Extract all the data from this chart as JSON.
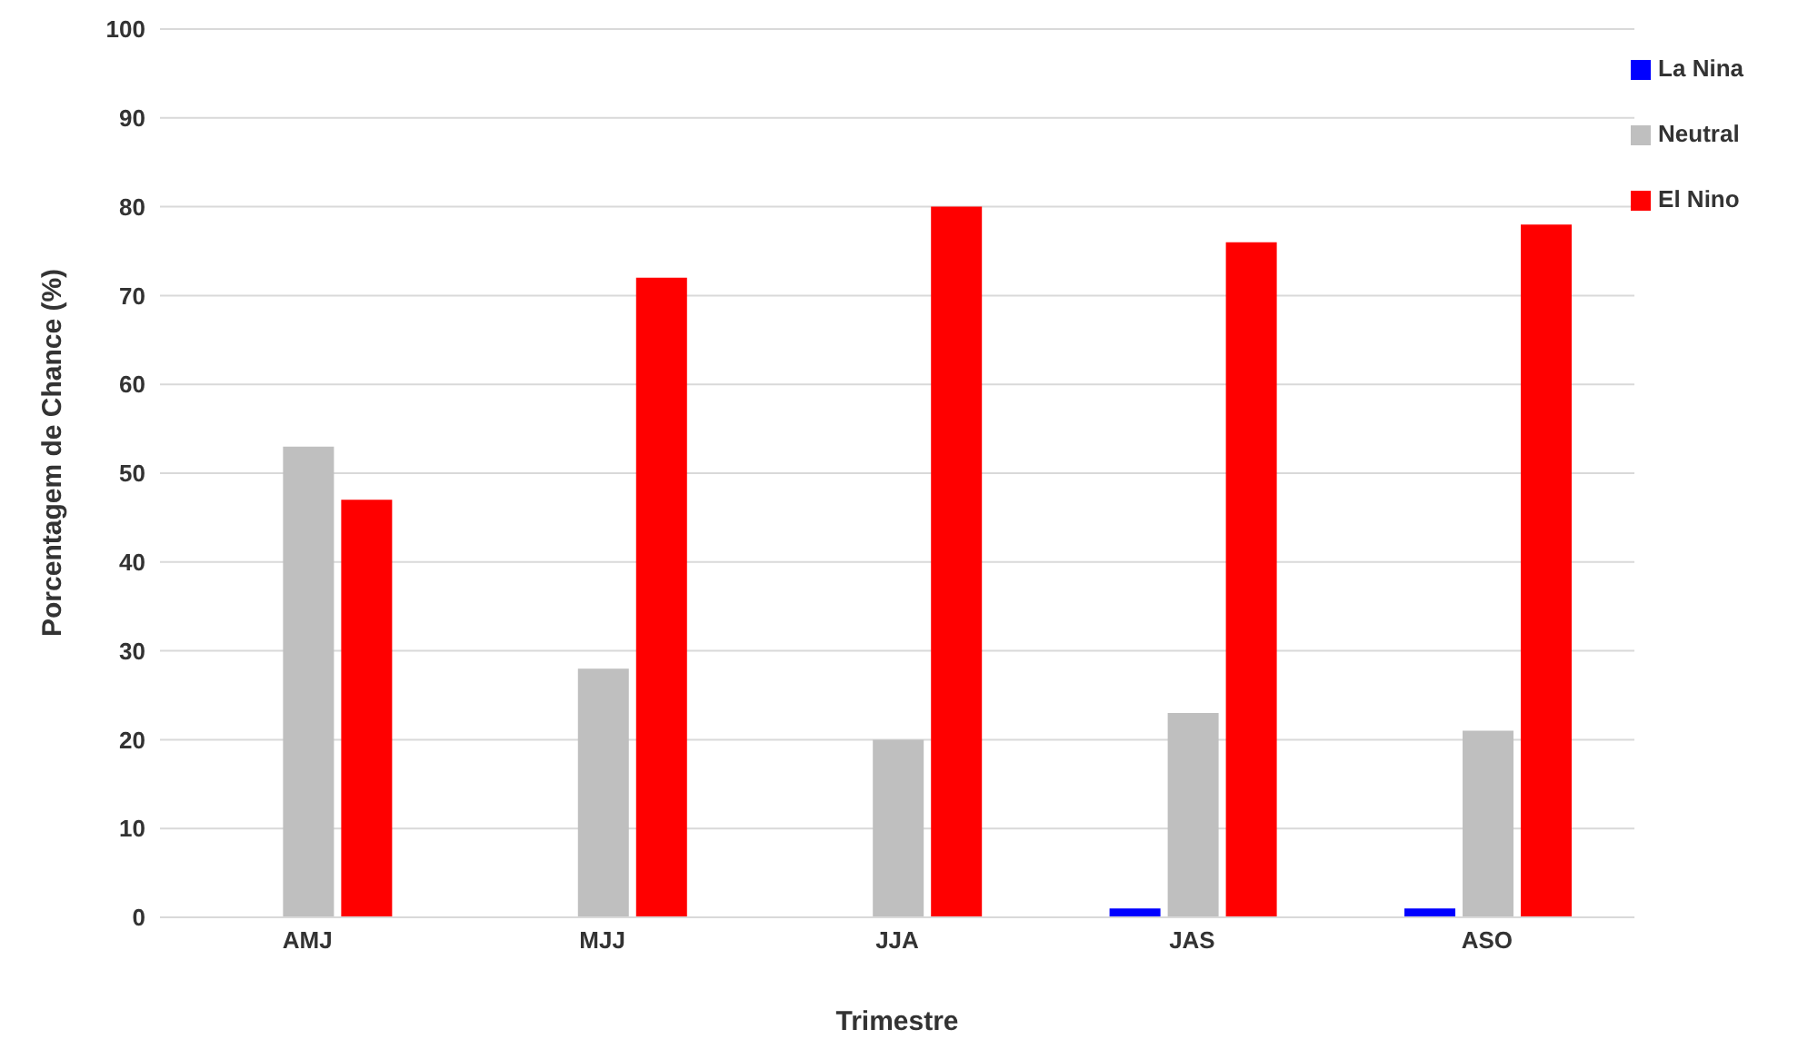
{
  "chart_data": {
    "type": "bar",
    "xlabel": "Trimestre",
    "ylabel": "Porcentagem de Chance (%)",
    "categories": [
      "AMJ",
      "MJJ",
      "JJA",
      "JAS",
      "ASO"
    ],
    "series": [
      {
        "name": "La Nina",
        "color": "#0000ff",
        "values": [
          0,
          0,
          0,
          1,
          1
        ]
      },
      {
        "name": "Neutral",
        "color": "#bfbfbf",
        "values": [
          53,
          28,
          20,
          23,
          21
        ]
      },
      {
        "name": "El Nino",
        "color": "#ff0000",
        "values": [
          47,
          72,
          80,
          76,
          78
        ]
      }
    ],
    "ylim": [
      0,
      100
    ],
    "yticks": [
      0,
      10,
      20,
      30,
      40,
      50,
      60,
      70,
      80,
      90,
      100
    ],
    "grid": "y",
    "legend": "top right"
  }
}
